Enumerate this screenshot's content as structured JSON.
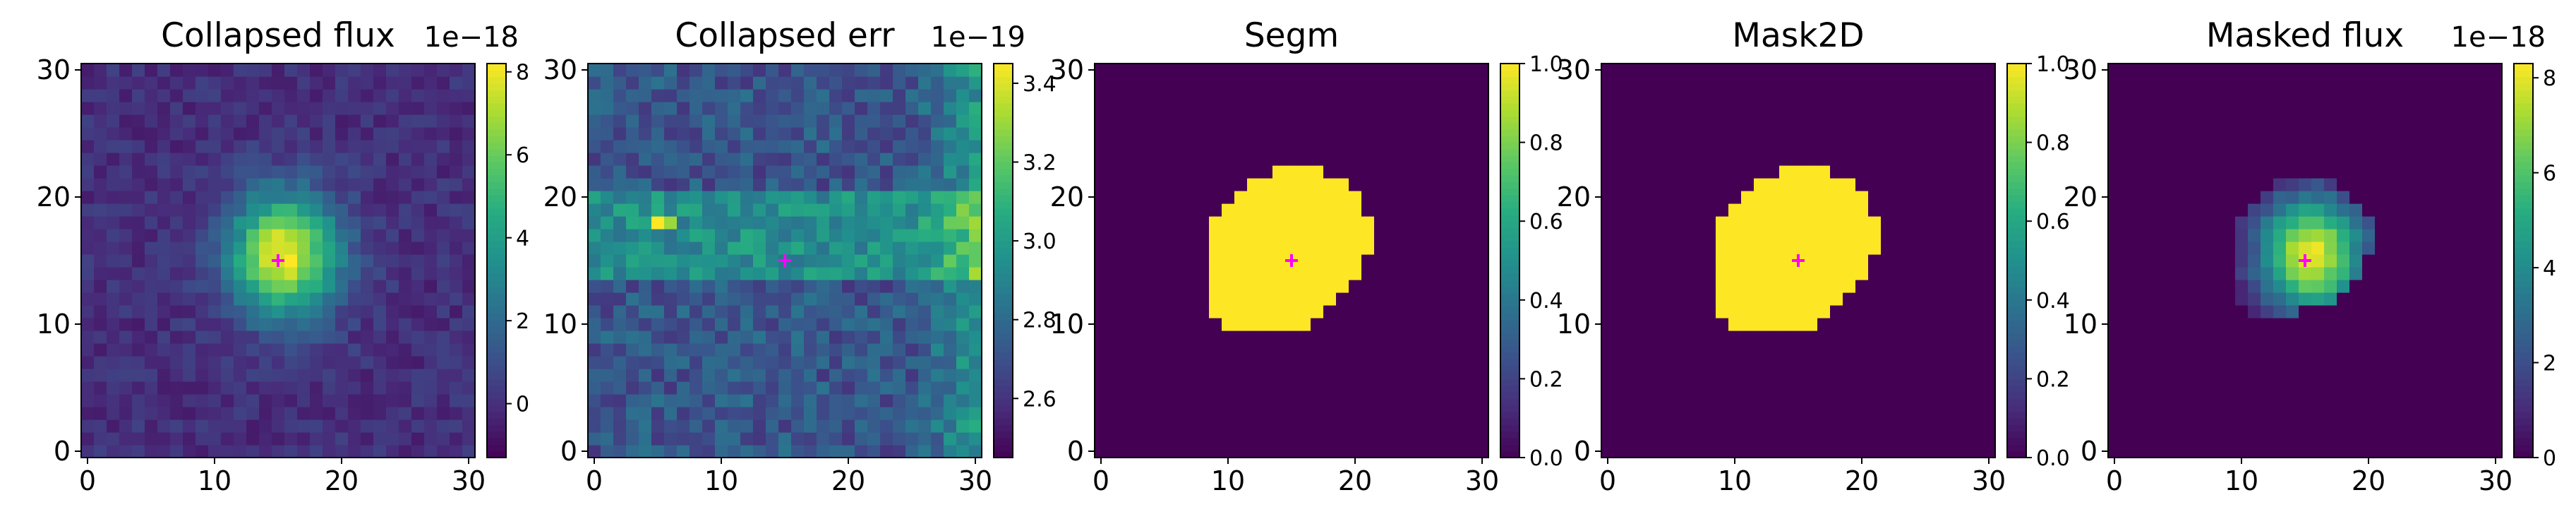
{
  "chart_data": [
    {
      "type": "heatmap",
      "title": "Collapsed flux",
      "colorbar_exponent": "1e−18",
      "xlim": [
        -0.5,
        30.5
      ],
      "ylim": [
        -0.5,
        30.5
      ],
      "x_ticks": [
        "0",
        "10",
        "20",
        "30"
      ],
      "y_ticks": [
        "0",
        "10",
        "20",
        "30"
      ],
      "colorbar_range": [
        -1.3,
        8.2
      ],
      "colorbar_ticks": [
        {
          "value": 0,
          "label": "0"
        },
        {
          "value": 2,
          "label": "2"
        },
        {
          "value": 4,
          "label": "4"
        },
        {
          "value": 6,
          "label": "6"
        },
        {
          "value": 8,
          "label": "8"
        }
      ],
      "colormap": "viridis",
      "field": "gaussian_source",
      "source_center": [
        15.5,
        15.5
      ],
      "source_peak": 8.0,
      "source_sigma": 3.0,
      "background_level": 0.0,
      "noise_amplitude": 0.6,
      "marker": {
        "x": 15,
        "y": 15,
        "symbol": "+",
        "color": "#ff00ff"
      }
    },
    {
      "type": "heatmap",
      "title": "Collapsed err",
      "colorbar_exponent": "1e−19",
      "xlim": [
        -0.5,
        30.5
      ],
      "ylim": [
        -0.5,
        30.5
      ],
      "x_ticks": [
        "0",
        "10",
        "20",
        "30"
      ],
      "y_ticks": [
        "0",
        "10",
        "20",
        "30"
      ],
      "colorbar_range": [
        2.45,
        3.45
      ],
      "colorbar_ticks": [
        {
          "value": 2.6,
          "label": "2.6"
        },
        {
          "value": 2.8,
          "label": "2.8"
        },
        {
          "value": 3.0,
          "label": "3.0"
        },
        {
          "value": 3.2,
          "label": "3.2"
        },
        {
          "value": 3.4,
          "label": "3.4"
        }
      ],
      "colormap": "viridis",
      "field": "error_map",
      "base_level": 2.72,
      "band_rows": [
        14,
        15,
        16,
        17,
        18,
        19,
        20
      ],
      "band_level": 2.95,
      "right_edge_boost": 0.25,
      "hot_pixels": [
        {
          "x": 5,
          "y": 18,
          "value": 3.45
        },
        {
          "x": 6,
          "y": 18,
          "value": 3.3
        }
      ],
      "noise_amplitude": 0.12,
      "marker": {
        "x": 15,
        "y": 15,
        "symbol": "+",
        "color": "#ff00ff"
      }
    },
    {
      "type": "heatmap",
      "title": "Segm",
      "colorbar_exponent": "",
      "xlim": [
        -0.5,
        30.5
      ],
      "ylim": [
        -0.5,
        30.5
      ],
      "x_ticks": [
        "0",
        "10",
        "20",
        "30"
      ],
      "y_ticks": [
        "0",
        "10",
        "20",
        "30"
      ],
      "colorbar_range": [
        0.0,
        1.0
      ],
      "colorbar_ticks": [
        {
          "value": 0.0,
          "label": "0.0"
        },
        {
          "value": 0.2,
          "label": "0.2"
        },
        {
          "value": 0.4,
          "label": "0.4"
        },
        {
          "value": 0.6,
          "label": "0.6"
        },
        {
          "value": 0.8,
          "label": "0.8"
        },
        {
          "value": 1.0,
          "label": "1.0"
        }
      ],
      "colormap": "viridis",
      "field": "mask",
      "mask_rows": [
        {
          "y": 10,
          "x0": 10,
          "x1": 16
        },
        {
          "y": 11,
          "x0": 9,
          "x1": 17
        },
        {
          "y": 12,
          "x0": 9,
          "x1": 18
        },
        {
          "y": 13,
          "x0": 9,
          "x1": 19
        },
        {
          "y": 14,
          "x0": 9,
          "x1": 20
        },
        {
          "y": 15,
          "x0": 9,
          "x1": 20
        },
        {
          "y": 16,
          "x0": 9,
          "x1": 21
        },
        {
          "y": 17,
          "x0": 9,
          "x1": 21
        },
        {
          "y": 18,
          "x0": 9,
          "x1": 21
        },
        {
          "y": 19,
          "x0": 10,
          "x1": 20
        },
        {
          "y": 20,
          "x0": 11,
          "x1": 20
        },
        {
          "y": 21,
          "x0": 12,
          "x1": 19
        },
        {
          "y": 22,
          "x0": 14,
          "x1": 17
        }
      ],
      "marker": {
        "x": 15,
        "y": 15,
        "symbol": "+",
        "color": "#ff00ff"
      }
    },
    {
      "type": "heatmap",
      "title": "Mask2D",
      "colorbar_exponent": "",
      "xlim": [
        -0.5,
        30.5
      ],
      "ylim": [
        -0.5,
        30.5
      ],
      "x_ticks": [
        "0",
        "10",
        "20",
        "30"
      ],
      "y_ticks": [
        "0",
        "10",
        "20",
        "30"
      ],
      "colorbar_range": [
        0.0,
        1.0
      ],
      "colorbar_ticks": [
        {
          "value": 0.0,
          "label": "0.0"
        },
        {
          "value": 0.2,
          "label": "0.2"
        },
        {
          "value": 0.4,
          "label": "0.4"
        },
        {
          "value": 0.6,
          "label": "0.6"
        },
        {
          "value": 0.8,
          "label": "0.8"
        },
        {
          "value": 1.0,
          "label": "1.0"
        }
      ],
      "colormap": "viridis",
      "field": "mask",
      "mask_rows": [
        {
          "y": 10,
          "x0": 10,
          "x1": 16
        },
        {
          "y": 11,
          "x0": 9,
          "x1": 17
        },
        {
          "y": 12,
          "x0": 9,
          "x1": 18
        },
        {
          "y": 13,
          "x0": 9,
          "x1": 19
        },
        {
          "y": 14,
          "x0": 9,
          "x1": 20
        },
        {
          "y": 15,
          "x0": 9,
          "x1": 20
        },
        {
          "y": 16,
          "x0": 9,
          "x1": 21
        },
        {
          "y": 17,
          "x0": 9,
          "x1": 21
        },
        {
          "y": 18,
          "x0": 9,
          "x1": 21
        },
        {
          "y": 19,
          "x0": 10,
          "x1": 20
        },
        {
          "y": 20,
          "x0": 11,
          "x1": 20
        },
        {
          "y": 21,
          "x0": 12,
          "x1": 19
        },
        {
          "y": 22,
          "x0": 14,
          "x1": 17
        }
      ],
      "marker": {
        "x": 15,
        "y": 15,
        "symbol": "+",
        "color": "#ff00ff"
      }
    },
    {
      "type": "heatmap",
      "title": "Masked flux",
      "colorbar_exponent": "1e−18",
      "xlim": [
        -0.5,
        30.5
      ],
      "ylim": [
        -0.5,
        30.5
      ],
      "x_ticks": [
        "0",
        "10",
        "20",
        "30"
      ],
      "y_ticks": [
        "0",
        "10",
        "20",
        "30"
      ],
      "colorbar_range": [
        0.0,
        8.3
      ],
      "colorbar_ticks": [
        {
          "value": 0,
          "label": "0"
        },
        {
          "value": 2,
          "label": "2"
        },
        {
          "value": 4,
          "label": "4"
        },
        {
          "value": 6,
          "label": "6"
        },
        {
          "value": 8,
          "label": "8"
        }
      ],
      "colormap": "viridis",
      "field": "masked_source",
      "source_center": [
        15.5,
        15.5
      ],
      "source_peak": 8.0,
      "source_sigma": 3.0,
      "noise_amplitude": 0.4,
      "mask_rows": [
        {
          "y": 11,
          "x0": 11,
          "x1": 14
        },
        {
          "y": 12,
          "x0": 10,
          "x1": 17
        },
        {
          "y": 13,
          "x0": 10,
          "x1": 18
        },
        {
          "y": 14,
          "x0": 10,
          "x1": 19
        },
        {
          "y": 15,
          "x0": 10,
          "x1": 19
        },
        {
          "y": 16,
          "x0": 10,
          "x1": 20
        },
        {
          "y": 17,
          "x0": 10,
          "x1": 20
        },
        {
          "y": 18,
          "x0": 10,
          "x1": 20
        },
        {
          "y": 19,
          "x0": 11,
          "x1": 19
        },
        {
          "y": 20,
          "x0": 12,
          "x1": 18
        },
        {
          "y": 21,
          "x0": 13,
          "x1": 17
        }
      ],
      "marker": {
        "x": 15,
        "y": 15,
        "symbol": "+",
        "color": "#ff00ff"
      }
    }
  ]
}
